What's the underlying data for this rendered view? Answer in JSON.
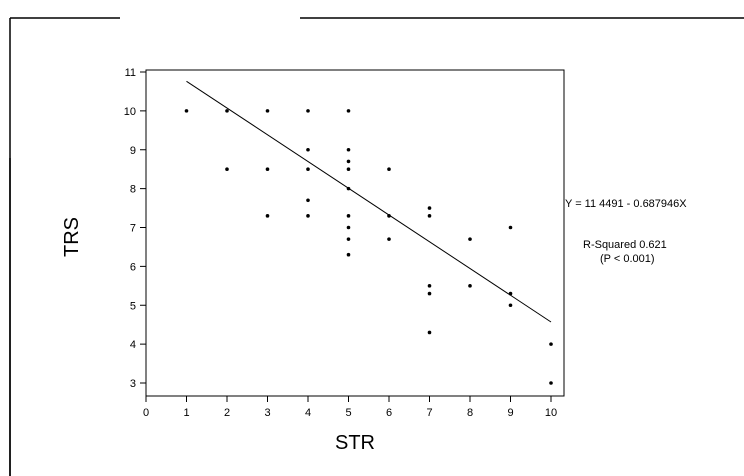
{
  "chart_data": {
    "type": "scatter",
    "xlabel": "STR",
    "ylabel": "TRS",
    "xlim": [
      0,
      10
    ],
    "ylim": [
      3,
      11
    ],
    "x_ticks": [
      "0",
      "1",
      "2",
      "3",
      "4",
      "5",
      "6",
      "7",
      "8",
      "9",
      "10"
    ],
    "y_ticks": [
      "3",
      "4",
      "5",
      "6",
      "7",
      "8",
      "9",
      "10",
      "11"
    ],
    "grid": false,
    "points": [
      {
        "x": 1,
        "y": 10
      },
      {
        "x": 2,
        "y": 10
      },
      {
        "x": 2,
        "y": 8.5
      },
      {
        "x": 3,
        "y": 10
      },
      {
        "x": 3,
        "y": 8.5
      },
      {
        "x": 3,
        "y": 7.3
      },
      {
        "x": 4,
        "y": 10
      },
      {
        "x": 4,
        "y": 9
      },
      {
        "x": 4,
        "y": 8.5
      },
      {
        "x": 4,
        "y": 7.7
      },
      {
        "x": 4,
        "y": 7.3
      },
      {
        "x": 5,
        "y": 10
      },
      {
        "x": 5,
        "y": 9
      },
      {
        "x": 5,
        "y": 8.7
      },
      {
        "x": 5,
        "y": 8.5
      },
      {
        "x": 5,
        "y": 8
      },
      {
        "x": 5,
        "y": 7.3
      },
      {
        "x": 5,
        "y": 7
      },
      {
        "x": 5,
        "y": 6.7
      },
      {
        "x": 5,
        "y": 6.3
      },
      {
        "x": 6,
        "y": 8.5
      },
      {
        "x": 6,
        "y": 7.3
      },
      {
        "x": 6,
        "y": 6.7
      },
      {
        "x": 7,
        "y": 7.5
      },
      {
        "x": 7,
        "y": 7.3
      },
      {
        "x": 7,
        "y": 5.5
      },
      {
        "x": 7,
        "y": 5.3
      },
      {
        "x": 7,
        "y": 4.3
      },
      {
        "x": 8,
        "y": 6.7
      },
      {
        "x": 8,
        "y": 5.5
      },
      {
        "x": 9,
        "y": 7
      },
      {
        "x": 9,
        "y": 5.3
      },
      {
        "x": 9,
        "y": 5
      },
      {
        "x": 10,
        "y": 4
      },
      {
        "x": 10,
        "y": 3
      }
    ],
    "regression": {
      "intercept": 11.4491,
      "slope": -0.687946,
      "x_range": [
        1,
        10
      ]
    },
    "annotations": {
      "equation": "Y = 11 4491 - 0.687946X",
      "r_squared": "R-Squared 0.621",
      "p_value": "(P < 0.001)"
    }
  }
}
